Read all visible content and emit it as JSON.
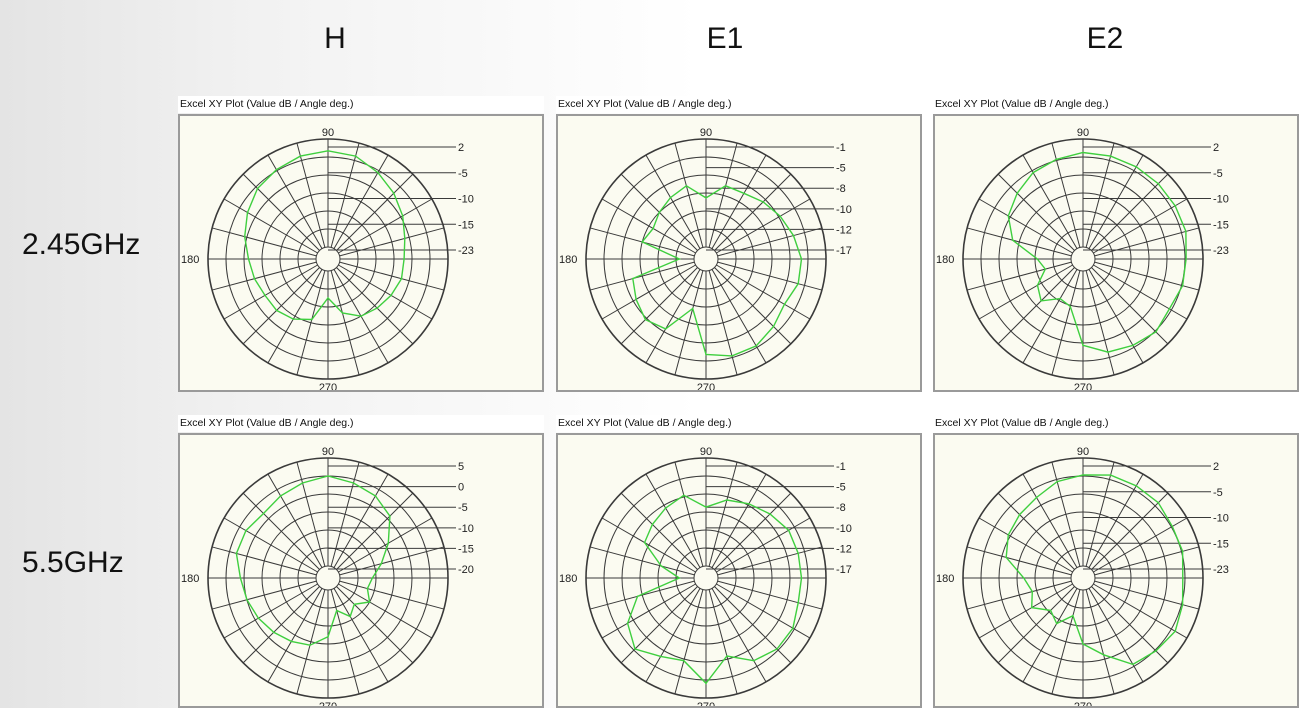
{
  "columns": {
    "h": "H",
    "e1": "E1",
    "e2": "E2"
  },
  "rows": {
    "r1": "2.45GHz",
    "r2": "5.5GHz"
  },
  "plot_title": "Excel XY Plot (Value dB / Angle deg.)",
  "colors": {
    "trace": "#3fcf3f",
    "grid": "#3a3a3a",
    "plot_bg": "#fbfbf1"
  },
  "chart_data": [
    {
      "type": "polar",
      "row": "2.45GHz",
      "column": "H",
      "title": "Excel XY Plot (Value dB / Angle deg.)",
      "angle_labels": [
        "90",
        "180",
        "270"
      ],
      "ring_labels": [
        "2",
        "-5",
        "-10",
        "-15",
        "-23"
      ],
      "r_range_db": [
        -28,
        4
      ],
      "angles_deg": [
        0,
        15,
        30,
        45,
        60,
        75,
        90,
        105,
        120,
        135,
        150,
        165,
        180,
        195,
        210,
        225,
        240,
        255,
        270,
        285,
        300,
        315,
        330,
        345
      ],
      "values_db": [
        -9,
        -8,
        -6,
        -4,
        -2,
        0,
        0.5,
        0,
        -1,
        -2,
        -4,
        -6,
        -8,
        -9,
        -10,
        -10,
        -11,
        -13,
        -20,
        -15,
        -12,
        -11,
        -10,
        -9
      ]
    },
    {
      "type": "polar",
      "row": "2.45GHz",
      "column": "E1",
      "title": "Excel XY Plot (Value dB / Angle deg.)",
      "angle_labels": [
        "90",
        "180",
        "270"
      ],
      "ring_labels": [
        "-1",
        "-5",
        "-8",
        "-10",
        "-12",
        "-17"
      ],
      "r_range_db": [
        -22,
        0
      ],
      "angles_deg": [
        0,
        15,
        30,
        45,
        60,
        75,
        90,
        105,
        120,
        135,
        150,
        165,
        180,
        195,
        210,
        225,
        240,
        255,
        270,
        285,
        300,
        315,
        330,
        345
      ],
      "values_db": [
        -5,
        -6,
        -7,
        -8,
        -9,
        -9,
        -12,
        -9,
        -10,
        -11,
        -12,
        -11,
        -19,
        -9,
        -8,
        -7,
        -8,
        -14,
        -5,
        -4,
        -4,
        -5,
        -6,
        -5
      ]
    },
    {
      "type": "polar",
      "row": "2.45GHz",
      "column": "E2",
      "title": "Excel XY Plot (Value dB / Angle deg.)",
      "angle_labels": [
        "90",
        "180",
        "270"
      ],
      "ring_labels": [
        "2",
        "-5",
        "-10",
        "-15",
        "-23"
      ],
      "r_range_db": [
        -28,
        4
      ],
      "angles_deg": [
        0,
        15,
        30,
        45,
        60,
        75,
        90,
        105,
        120,
        135,
        150,
        165,
        180,
        195,
        210,
        225,
        240,
        255,
        270,
        285,
        300,
        315,
        330,
        345
      ],
      "values_db": [
        -1,
        0,
        0,
        0,
        0,
        0,
        0,
        -1,
        -2,
        -4,
        -6,
        -10,
        -18,
        -20,
        -16,
        -14,
        -18,
        -17,
        -6,
        -3,
        -2,
        -1,
        -2,
        -1
      ]
    },
    {
      "type": "polar",
      "row": "5.5GHz",
      "column": "H",
      "title": "Excel XY Plot (Value dB / Angle deg.)",
      "angle_labels": [
        "90",
        "180",
        "270"
      ],
      "ring_labels": [
        "5",
        "0",
        "-5",
        "-10",
        "-15",
        "-20"
      ],
      "r_range_db": [
        -25,
        5
      ],
      "angles_deg": [
        0,
        15,
        30,
        45,
        60,
        75,
        90,
        105,
        120,
        135,
        150,
        165,
        180,
        195,
        210,
        225,
        240,
        255,
        270,
        285,
        300,
        315,
        330,
        345
      ],
      "values_db": [
        -16,
        -13,
        -9,
        -4,
        -2,
        -1,
        0,
        -1,
        -2,
        -3,
        -2,
        -2,
        -4,
        -5,
        -6,
        -7,
        -8,
        -9,
        -12,
        -19,
        -16,
        -18,
        -15,
        -17
      ]
    },
    {
      "type": "polar",
      "row": "5.5GHz",
      "column": "E1",
      "title": "Excel XY Plot (Value dB / Angle deg.)",
      "angle_labels": [
        "90",
        "180",
        "270"
      ],
      "ring_labels": [
        "-1",
        "-5",
        "-8",
        "-10",
        "-12",
        "-17"
      ],
      "r_range_db": [
        -22,
        0
      ],
      "angles_deg": [
        0,
        15,
        30,
        45,
        60,
        75,
        90,
        105,
        120,
        135,
        150,
        165,
        180,
        195,
        210,
        225,
        240,
        255,
        270,
        285,
        300,
        315,
        330,
        345
      ],
      "values_db": [
        -5,
        -5,
        -5,
        -6,
        -7,
        -8,
        -10,
        -7,
        -8,
        -9,
        -10,
        -15,
        -19,
        -10,
        -6,
        -4,
        -6,
        -7,
        -3,
        -8,
        -5,
        -4,
        -4,
        -5
      ]
    },
    {
      "type": "polar",
      "row": "5.5GHz",
      "column": "E2",
      "title": "Excel XY Plot (Value dB / Angle deg.)",
      "angle_labels": [
        "90",
        "180",
        "270"
      ],
      "ring_labels": [
        "2",
        "-5",
        "-10",
        "-15",
        "-23"
      ],
      "r_range_db": [
        -28,
        4
      ],
      "angles_deg": [
        0,
        15,
        30,
        45,
        60,
        75,
        90,
        105,
        120,
        135,
        150,
        165,
        180,
        195,
        210,
        225,
        240,
        255,
        270,
        285,
        300,
        315,
        330,
        345
      ],
      "values_db": [
        -2,
        -1,
        -1,
        0,
        0,
        0,
        -1,
        -2,
        -4,
        -5,
        -6,
        -8,
        -14,
        -16,
        -14,
        -18,
        -16,
        -20,
        -12,
        -8,
        -2,
        -1,
        0,
        -1
      ]
    }
  ]
}
